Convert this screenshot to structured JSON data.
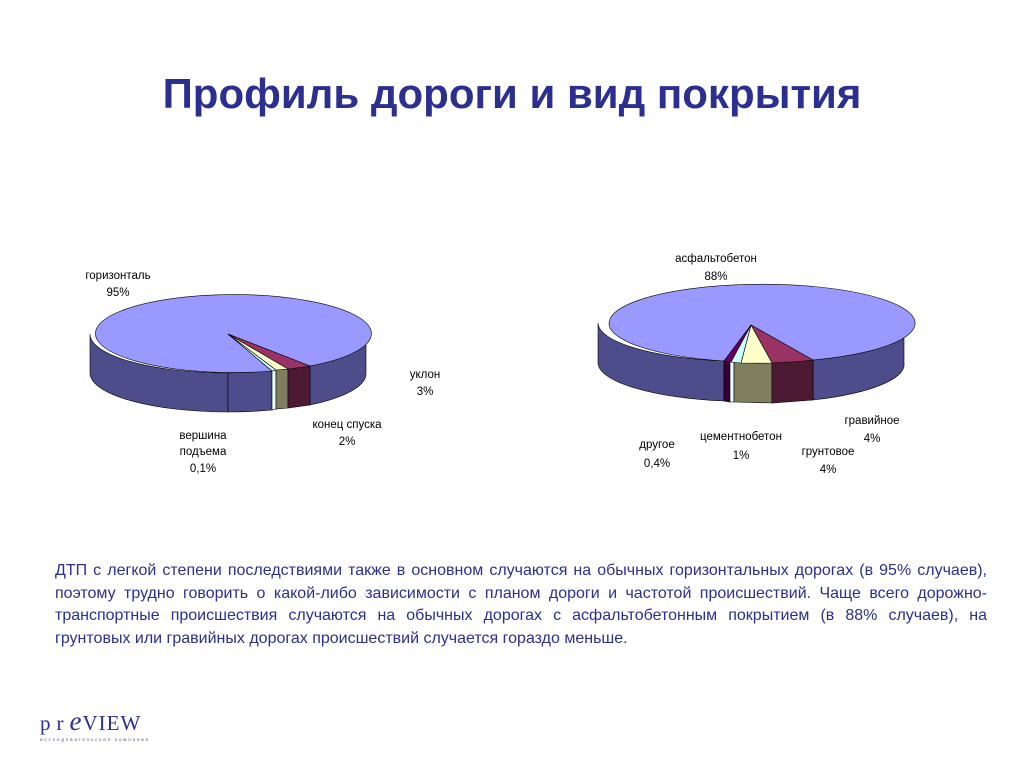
{
  "slide": {
    "title": "Профиль дороги и вид покрытия",
    "description": "ДТП с легкой степени последствиями также в основном  случаются на обычных горизонтальных дорогах (в 95% случаев), поэтому  трудно говорить о какой-либо зависимости с планом дороги и частотой происшествий. Чаще всего дорожно-транспортные происшествия случаются на обычных дорогах с  асфальтобетонным покрытием (в 88% случаев), на грунтовых или гравийных дорогах  происшествий случается гораздо меньше.",
    "logo": {
      "text_pr": "pr",
      "text_e": "e",
      "text_view": "VIEW",
      "subtitle": "исследовательская компания"
    }
  },
  "chart_data": [
    {
      "type": "pie",
      "title": "",
      "slices": [
        {
          "label": "горизонталь",
          "value": 95,
          "display": "95%",
          "color": "#9999ff"
        },
        {
          "label": "уклон",
          "value": 3,
          "display": "3%",
          "color": "#993366"
        },
        {
          "label": "конец спуска",
          "value": 2,
          "display": "2%",
          "color": "#ffffcc"
        },
        {
          "label": "вершина подъема",
          "value": 0.1,
          "display": "0,1%",
          "color": "#ccffff"
        }
      ],
      "extra_depth_segments": [
        {
          "label": "",
          "color": "#7f7f60"
        }
      ]
    },
    {
      "type": "pie",
      "title": "",
      "slices": [
        {
          "label": "асфальтобетон",
          "value": 88,
          "display": "88%",
          "color": "#9999ff"
        },
        {
          "label": "гравийное",
          "value": 4,
          "display": "4%",
          "color": "#993366"
        },
        {
          "label": "грунтовое",
          "value": 4,
          "display": "4%",
          "color": "#ffffcc"
        },
        {
          "label": "цементнобетон",
          "value": 1,
          "display": "1%",
          "color": "#ccffff"
        },
        {
          "label": "другое",
          "value": 0.4,
          "display": "0,4%",
          "color": "#660066"
        }
      ]
    }
  ],
  "chart_labels": {
    "left": {
      "horizontal_name": "горизонталь",
      "horizontal_value": "95%",
      "slope_name": "уклон",
      "slope_value": "3%",
      "descent_name": "конец спуска",
      "descent_value": "2%",
      "top_name_1": "вершина",
      "top_name_2": "подъема",
      "top_value": "0,1%"
    },
    "right": {
      "asphalt_name": "асфальтобетон",
      "asphalt_value": "88%",
      "gravel_name": "гравийное",
      "gravel_value": "4%",
      "dirt_name": "грунтовое",
      "dirt_value": "4%",
      "cement_name": "цементнобетон",
      "cement_value": "1%",
      "other_name": "другое",
      "other_value": "0,4%"
    }
  }
}
